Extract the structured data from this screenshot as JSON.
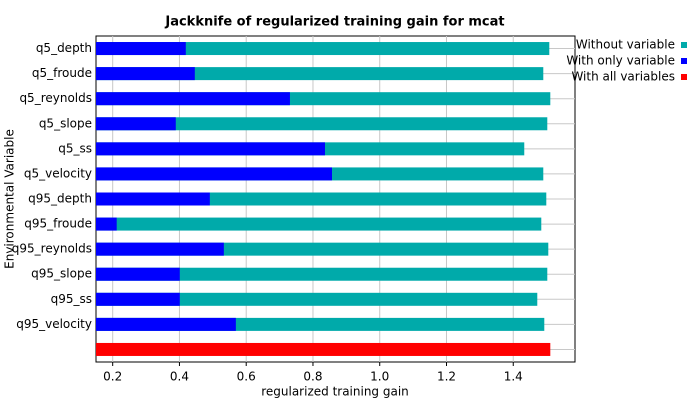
{
  "chart_data": {
    "type": "bar",
    "orientation": "horizontal",
    "title": "Jackknife of regularized training gain for mcat",
    "xlabel": "regularized training gain",
    "ylabel": "Environmental Variable",
    "categories": [
      "q5_depth",
      "q5_froude",
      "q5_reynolds",
      "q5_slope",
      "q5_ss",
      "q5_velocity",
      "q95_depth",
      "q95_froude",
      "q95_reynolds",
      "q95_slope",
      "q95_ss",
      "q95_velocity",
      null
    ],
    "series": [
      {
        "name": "Without variable",
        "color": "#00aaaa",
        "values": [
          1.508,
          1.49,
          1.511,
          1.502,
          1.433,
          1.49,
          1.499,
          1.484,
          1.505,
          1.502,
          1.472,
          1.493,
          null
        ]
      },
      {
        "name": "With only variable",
        "color": "#0000ff",
        "values": [
          0.419,
          0.446,
          0.731,
          0.389,
          0.836,
          0.857,
          0.491,
          0.212,
          0.533,
          0.401,
          0.401,
          0.569,
          null
        ]
      },
      {
        "name": "With all variables",
        "color": "#ff0000",
        "values": [
          null,
          null,
          null,
          null,
          null,
          null,
          null,
          null,
          null,
          null,
          null,
          null,
          1.511
        ]
      }
    ],
    "xlim": [
      0.15,
      1.585
    ],
    "xticks": [
      0.2,
      0.4,
      0.6,
      0.8,
      {
        "value": 1.0,
        "label": "1.0"
      },
      1.2,
      1.4
    ],
    "grid": true,
    "legend": "right"
  }
}
